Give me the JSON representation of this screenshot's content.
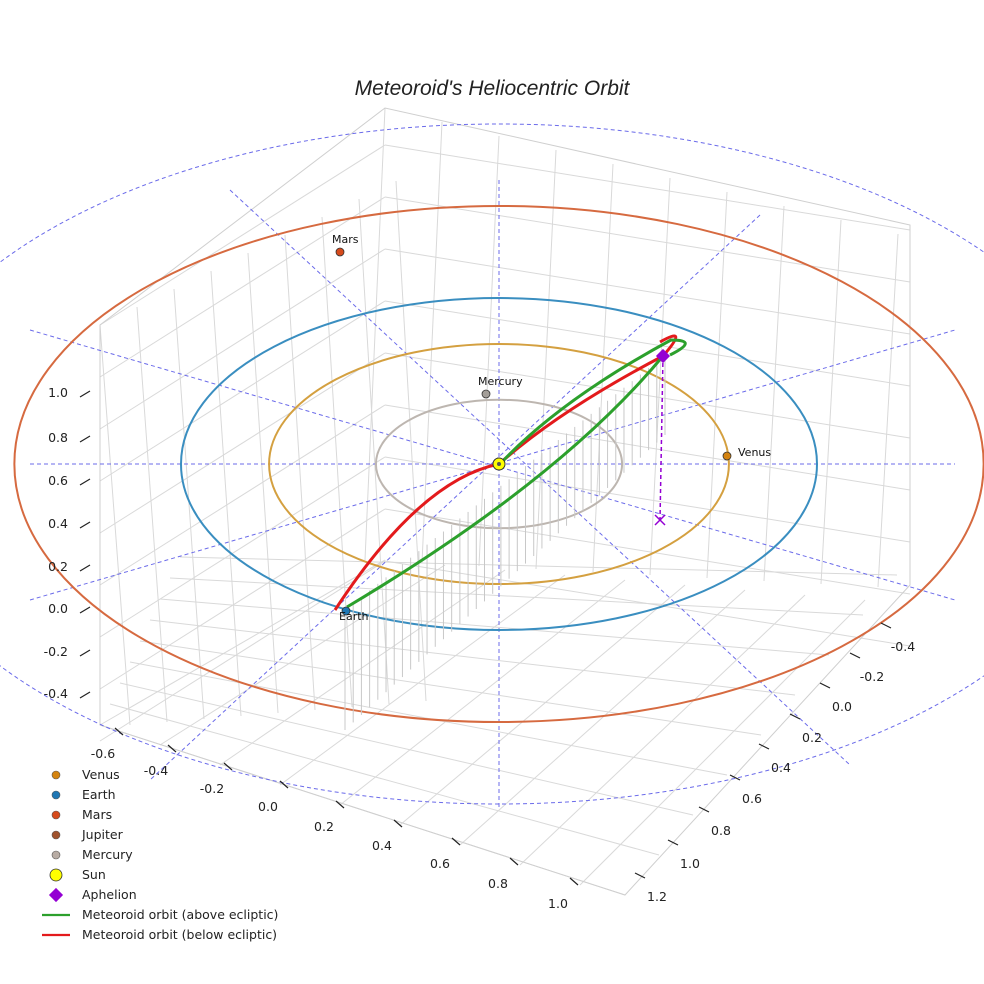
{
  "chart_data": {
    "type": "line",
    "title": "Meteoroid's Heliocentric Orbit",
    "x_ticks": [
      "-0.4",
      "-0.2",
      "0.0",
      "0.2",
      "0.4",
      "0.6",
      "0.8",
      "1.0"
    ],
    "y_ticks": [
      "-0.4",
      "-0.2",
      "0.0",
      "0.2",
      "0.4",
      "0.6",
      "0.8",
      "1.0",
      "1.2"
    ],
    "z_ticks": [
      "-0.6",
      "-0.4",
      "-0.2",
      "0.0",
      "0.2",
      "0.4",
      "0.6",
      "0.8",
      "1.0"
    ],
    "orbits": [
      {
        "name": "Mercury",
        "radius_au": 0.387,
        "color": "#bdb6b0"
      },
      {
        "name": "Venus",
        "radius_au": 0.723,
        "color": "#d4a040"
      },
      {
        "name": "Earth",
        "radius_au": 1.0,
        "color": "#3a8ec0"
      },
      {
        "name": "Mars",
        "radius_au": 1.524,
        "color": "#d66a40"
      }
    ],
    "planets": [
      {
        "name": "Venus",
        "x": 0.72,
        "y": 0.0,
        "color": "#d4830f"
      },
      {
        "name": "Earth",
        "x": -0.3,
        "y": -0.95,
        "color": "#1f77b4"
      },
      {
        "name": "Mars",
        "x": -0.5,
        "y": 1.44,
        "color": "#d64b1c"
      },
      {
        "name": "Mercury",
        "x": -0.02,
        "y": 0.39,
        "color": "#a39e98"
      }
    ],
    "sun": {
      "name": "Sun",
      "x": 0,
      "y": 0,
      "color": "#ffff00"
    },
    "aphelion": {
      "name": "Aphelion",
      "x": 0.9,
      "y": 0.65,
      "z": 0.55,
      "color": "#9400d3"
    },
    "legend": [
      {
        "label": "Venus",
        "marker": "dot",
        "color": "#d4830f"
      },
      {
        "label": "Earth",
        "marker": "dot",
        "color": "#1f77b4"
      },
      {
        "label": "Mars",
        "marker": "dot",
        "color": "#d64b1c"
      },
      {
        "label": "Jupiter",
        "marker": "dot",
        "color": "#a0522d"
      },
      {
        "label": "Mercury",
        "marker": "dot",
        "color": "#b8aca4"
      },
      {
        "label": "Sun",
        "marker": "sun",
        "color": "#ffff00"
      },
      {
        "label": "Aphelion",
        "marker": "diamond",
        "color": "#9400d3"
      },
      {
        "label": "Meteoroid orbit (above ecliptic)",
        "marker": "line",
        "color": "#2ca02c"
      },
      {
        "label": "Meteoroid orbit (below ecliptic)",
        "marker": "line",
        "color": "#e31a1c"
      }
    ],
    "legend_position": "bottom-left",
    "grid": true
  }
}
